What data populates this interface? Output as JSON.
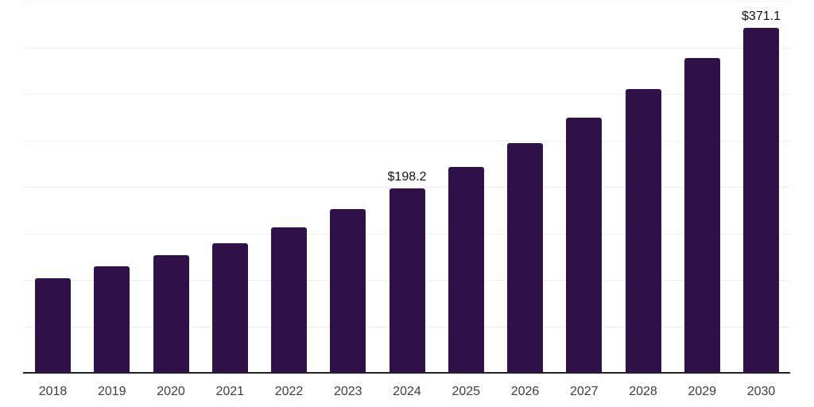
{
  "chart_data": {
    "type": "bar",
    "title": "",
    "xlabel": "",
    "ylabel": "",
    "categories": [
      "2018",
      "2019",
      "2020",
      "2021",
      "2022",
      "2023",
      "2024",
      "2025",
      "2026",
      "2027",
      "2028",
      "2029",
      "2030"
    ],
    "values": [
      101.9,
      114.6,
      126.7,
      139.4,
      156.5,
      176.2,
      198.2,
      221.5,
      247.1,
      274.5,
      305.3,
      338.6,
      371.1
    ],
    "data_labels": {
      "2024": "$198.2",
      "2030": "$371.1"
    },
    "ylim": [
      0,
      400
    ],
    "grid_step": 50,
    "grid": "horizontal",
    "legend": "none",
    "colors": {
      "bar": "#301148",
      "gridline": "#eeeeee",
      "axis": "#222222",
      "tick_label": "#3d3d3d",
      "value_label": "#111111",
      "background": "#ffffff"
    }
  }
}
